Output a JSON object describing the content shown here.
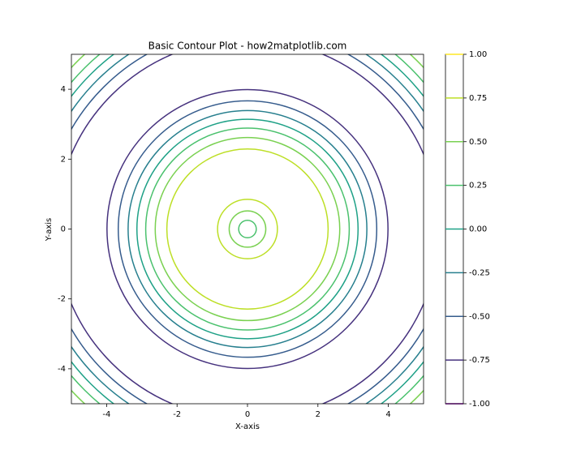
{
  "chart_data": {
    "type": "contour",
    "title": "Basic Contour Plot - how2matplotlib.com",
    "xlabel": "X-axis",
    "ylabel": "Y-axis",
    "xlim": [
      -5,
      5
    ],
    "ylim": [
      -5,
      5
    ],
    "xticks": [
      -4,
      -2,
      0,
      2,
      4
    ],
    "yticks": [
      -4,
      -2,
      0,
      2,
      4
    ],
    "levels": [
      {
        "value": -1,
        "color": "#440154"
      },
      {
        "value": -0.75,
        "color": "#46327e"
      },
      {
        "value": -0.5,
        "color": "#365c8d"
      },
      {
        "value": -0.25,
        "color": "#277f8e"
      },
      {
        "value": 0,
        "color": "#1fa187"
      },
      {
        "value": 0.25,
        "color": "#4ac16d"
      },
      {
        "value": 0.5,
        "color": "#7ad151"
      },
      {
        "value": 0.75,
        "color": "#bddf26"
      },
      {
        "value": 1,
        "color": "#fde725"
      }
    ],
    "contours": [
      {
        "level": 0.25,
        "radius": 0.25
      },
      {
        "level": 0.5,
        "radius": 0.52
      },
      {
        "level": 0.75,
        "radius": 0.85
      },
      {
        "level": 0.75,
        "radius": 2.29
      },
      {
        "level": 0.5,
        "radius": 2.62
      },
      {
        "level": 0.25,
        "radius": 2.89
      },
      {
        "level": 0,
        "radius": 3.14
      },
      {
        "level": -0.25,
        "radius": 3.39
      },
      {
        "level": -0.5,
        "radius": 3.67
      },
      {
        "level": -0.75,
        "radius": 3.99
      },
      {
        "level": -0.75,
        "radius": 5.44
      },
      {
        "level": -0.5,
        "radius": 5.76
      },
      {
        "level": -0.25,
        "radius": 6.03
      },
      {
        "level": 0,
        "radius": 6.28
      },
      {
        "level": 0.25,
        "radius": 6.53
      },
      {
        "level": 0.5,
        "radius": 6.81
      }
    ],
    "colorbar": {
      "lim": [
        -1,
        1
      ],
      "ticks": [
        {
          "value": -1,
          "label": "-1.00"
        },
        {
          "value": -0.75,
          "label": "-0.75"
        },
        {
          "value": -0.5,
          "label": "-0.50"
        },
        {
          "value": -0.25,
          "label": "-0.25"
        },
        {
          "value": 0,
          "label": "0.00"
        },
        {
          "value": 0.25,
          "label": "0.25"
        },
        {
          "value": 0.5,
          "label": "0.50"
        },
        {
          "value": 0.75,
          "label": "0.75"
        },
        {
          "value": 1,
          "label": "1.00"
        }
      ]
    }
  }
}
